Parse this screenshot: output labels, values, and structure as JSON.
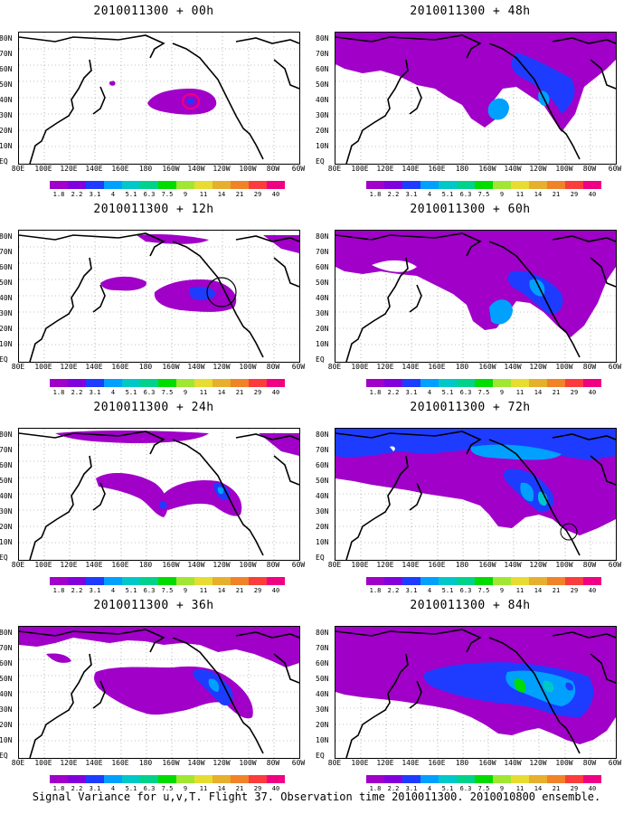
{
  "panels": [
    {
      "title": "2010011300 + 00h"
    },
    {
      "title": "2010011300 + 48h"
    },
    {
      "title": "2010011300 + 12h"
    },
    {
      "title": "2010011300 + 60h"
    },
    {
      "title": "2010011300 + 24h"
    },
    {
      "title": "2010011300 + 72h"
    },
    {
      "title": "2010011300 + 36h"
    },
    {
      "title": "2010011300 + 84h"
    }
  ],
  "lat_labels": [
    "80N",
    "70N",
    "60N",
    "50N",
    "40N",
    "30N",
    "20N",
    "10N",
    "EQ"
  ],
  "lon_labels": [
    "80E",
    "100E",
    "120E",
    "140E",
    "160E",
    "180",
    "160W",
    "140W",
    "120W",
    "100W",
    "80W",
    "60W"
  ],
  "colorbar": {
    "labels": [
      "1.8",
      "2.2",
      "3.1",
      "4",
      "5.1",
      "6.3",
      "7.5",
      "9",
      "11",
      "14",
      "21",
      "29",
      "40"
    ],
    "colors": [
      "#a000c8",
      "#8200dc",
      "#1e3cff",
      "#00a0ff",
      "#00c8c8",
      "#00d28c",
      "#00dc00",
      "#a0e632",
      "#e6dc32",
      "#e6af2d",
      "#f08228",
      "#fa3c3c",
      "#f00082"
    ]
  },
  "footer": "Signal Variance for u,v,T. Flight 37. Observation time 2010011300. 2010010800 ensemble."
}
